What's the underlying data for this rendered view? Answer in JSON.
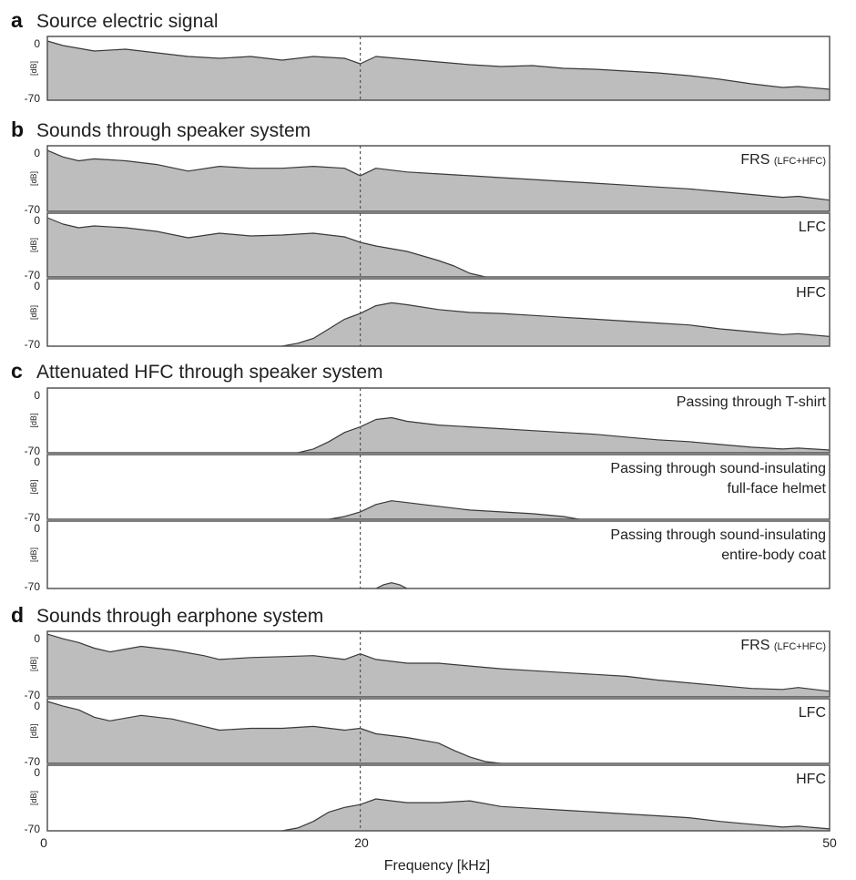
{
  "colors": {
    "fill": "#bdbdbd",
    "line": "#3a3a3a",
    "frame": "#555555"
  },
  "chart_data": {
    "type": "area",
    "xlabel": "Frequency [kHz]",
    "xlim": [
      0,
      50
    ],
    "x_ticks": [
      "0",
      "20",
      "50"
    ],
    "reference_line_x": 20,
    "ylabel": "[dB]",
    "ylim": [
      -70,
      0
    ],
    "y_ticks": [
      "0",
      "-70"
    ],
    "sections": [
      {
        "letter": "a",
        "title": "Source electric signal",
        "panels": [
          {
            "label": "",
            "label_sub": "",
            "points": [
              [
                0,
                -5
              ],
              [
                1,
                -10
              ],
              [
                2,
                -13
              ],
              [
                3,
                -16
              ],
              [
                5,
                -14
              ],
              [
                7,
                -18
              ],
              [
                9,
                -22
              ],
              [
                11,
                -24
              ],
              [
                13,
                -22
              ],
              [
                15,
                -26
              ],
              [
                17,
                -22
              ],
              [
                19,
                -24
              ],
              [
                20,
                -30
              ],
              [
                21,
                -22
              ],
              [
                23,
                -25
              ],
              [
                25,
                -28
              ],
              [
                27,
                -31
              ],
              [
                29,
                -33
              ],
              [
                31,
                -32
              ],
              [
                33,
                -35
              ],
              [
                35,
                -36
              ],
              [
                37,
                -38
              ],
              [
                39,
                -40
              ],
              [
                41,
                -43
              ],
              [
                43,
                -47
              ],
              [
                45,
                -52
              ],
              [
                47,
                -56
              ],
              [
                48,
                -55
              ],
              [
                50,
                -58
              ]
            ]
          }
        ]
      },
      {
        "letter": "b",
        "title": "Sounds through speaker system",
        "panels": [
          {
            "label": "FRS",
            "label_sub": "(LFC+HFC)",
            "points": [
              [
                0,
                -5
              ],
              [
                1,
                -12
              ],
              [
                2,
                -16
              ],
              [
                3,
                -14
              ],
              [
                5,
                -16
              ],
              [
                7,
                -20
              ],
              [
                9,
                -27
              ],
              [
                11,
                -22
              ],
              [
                13,
                -24
              ],
              [
                15,
                -24
              ],
              [
                17,
                -22
              ],
              [
                19,
                -24
              ],
              [
                20,
                -32
              ],
              [
                21,
                -24
              ],
              [
                23,
                -28
              ],
              [
                25,
                -30
              ],
              [
                27,
                -32
              ],
              [
                29,
                -34
              ],
              [
                31,
                -36
              ],
              [
                33,
                -38
              ],
              [
                35,
                -40
              ],
              [
                37,
                -42
              ],
              [
                39,
                -44
              ],
              [
                41,
                -46
              ],
              [
                43,
                -49
              ],
              [
                45,
                -52
              ],
              [
                47,
                -55
              ],
              [
                48,
                -54
              ],
              [
                50,
                -58
              ]
            ]
          },
          {
            "label": "LFC",
            "label_sub": "",
            "points": [
              [
                0,
                -5
              ],
              [
                1,
                -12
              ],
              [
                2,
                -16
              ],
              [
                3,
                -14
              ],
              [
                5,
                -16
              ],
              [
                7,
                -20
              ],
              [
                9,
                -27
              ],
              [
                11,
                -22
              ],
              [
                13,
                -25
              ],
              [
                15,
                -24
              ],
              [
                17,
                -22
              ],
              [
                19,
                -26
              ],
              [
                20,
                -32
              ],
              [
                21,
                -36
              ],
              [
                23,
                -42
              ],
              [
                25,
                -52
              ],
              [
                26,
                -58
              ],
              [
                27,
                -66
              ],
              [
                28,
                -70
              ]
            ]
          },
          {
            "label": "HFC",
            "label_sub": "",
            "points": [
              [
                15,
                -70
              ],
              [
                16,
                -67
              ],
              [
                17,
                -62
              ],
              [
                18,
                -52
              ],
              [
                19,
                -42
              ],
              [
                20,
                -36
              ],
              [
                21,
                -28
              ],
              [
                22,
                -25
              ],
              [
                23,
                -27
              ],
              [
                25,
                -32
              ],
              [
                27,
                -35
              ],
              [
                29,
                -36
              ],
              [
                31,
                -38
              ],
              [
                33,
                -40
              ],
              [
                35,
                -42
              ],
              [
                37,
                -44
              ],
              [
                39,
                -46
              ],
              [
                41,
                -48
              ],
              [
                43,
                -52
              ],
              [
                45,
                -55
              ],
              [
                47,
                -58
              ],
              [
                48,
                -57
              ],
              [
                50,
                -60
              ]
            ]
          }
        ]
      },
      {
        "letter": "c",
        "title": "Attenuated HFC through speaker system",
        "panels": [
          {
            "label": "Passing through T-shirt",
            "label_sub": "",
            "points": [
              [
                16,
                -70
              ],
              [
                17,
                -66
              ],
              [
                18,
                -58
              ],
              [
                19,
                -48
              ],
              [
                20,
                -42
              ],
              [
                21,
                -34
              ],
              [
                22,
                -32
              ],
              [
                23,
                -36
              ],
              [
                25,
                -40
              ],
              [
                27,
                -42
              ],
              [
                29,
                -44
              ],
              [
                31,
                -46
              ],
              [
                33,
                -48
              ],
              [
                35,
                -50
              ],
              [
                37,
                -53
              ],
              [
                39,
                -56
              ],
              [
                41,
                -58
              ],
              [
                43,
                -61
              ],
              [
                45,
                -64
              ],
              [
                47,
                -66
              ],
              [
                48,
                -65
              ],
              [
                50,
                -67
              ]
            ]
          },
          {
            "label": "Passing through sound-insulating",
            "label_2": "full-face helmet",
            "label_sub": "",
            "points": [
              [
                18,
                -70
              ],
              [
                19,
                -67
              ],
              [
                20,
                -62
              ],
              [
                21,
                -54
              ],
              [
                22,
                -50
              ],
              [
                23,
                -52
              ],
              [
                24,
                -54
              ],
              [
                25,
                -56
              ],
              [
                27,
                -60
              ],
              [
                29,
                -62
              ],
              [
                31,
                -64
              ],
              [
                33,
                -67
              ],
              [
                34,
                -70
              ]
            ]
          },
          {
            "label": "Passing through sound-insulating",
            "label_2": "entire-body coat",
            "label_sub": "",
            "points": [
              [
                21,
                -70
              ],
              [
                21.5,
                -66
              ],
              [
                22,
                -64
              ],
              [
                22.5,
                -66
              ],
              [
                23,
                -70
              ]
            ]
          }
        ]
      },
      {
        "letter": "d",
        "title": "Sounds through earphone system",
        "panels": [
          {
            "label": "FRS",
            "label_sub": "(LFC+HFC)",
            "points": [
              [
                0,
                -3
              ],
              [
                1,
                -8
              ],
              [
                2,
                -12
              ],
              [
                3,
                -18
              ],
              [
                4,
                -22
              ],
              [
                6,
                -16
              ],
              [
                8,
                -20
              ],
              [
                10,
                -26
              ],
              [
                11,
                -30
              ],
              [
                13,
                -28
              ],
              [
                15,
                -27
              ],
              [
                17,
                -26
              ],
              [
                19,
                -30
              ],
              [
                20,
                -24
              ],
              [
                21,
                -30
              ],
              [
                23,
                -34
              ],
              [
                25,
                -34
              ],
              [
                27,
                -37
              ],
              [
                29,
                -40
              ],
              [
                31,
                -42
              ],
              [
                33,
                -44
              ],
              [
                35,
                -46
              ],
              [
                37,
                -48
              ],
              [
                39,
                -52
              ],
              [
                41,
                -55
              ],
              [
                43,
                -58
              ],
              [
                45,
                -61
              ],
              [
                47,
                -62
              ],
              [
                48,
                -60
              ],
              [
                50,
                -64
              ]
            ]
          },
          {
            "label": "LFC",
            "label_sub": "",
            "points": [
              [
                0,
                -3
              ],
              [
                1,
                -8
              ],
              [
                2,
                -12
              ],
              [
                3,
                -20
              ],
              [
                4,
                -24
              ],
              [
                6,
                -18
              ],
              [
                8,
                -22
              ],
              [
                10,
                -30
              ],
              [
                11,
                -34
              ],
              [
                13,
                -32
              ],
              [
                15,
                -32
              ],
              [
                17,
                -30
              ],
              [
                19,
                -34
              ],
              [
                20,
                -32
              ],
              [
                21,
                -38
              ],
              [
                23,
                -42
              ],
              [
                25,
                -48
              ],
              [
                26,
                -56
              ],
              [
                27,
                -63
              ],
              [
                28,
                -68
              ],
              [
                29,
                -70
              ]
            ]
          },
          {
            "label": "HFC",
            "label_sub": "",
            "points": [
              [
                15,
                -70
              ],
              [
                16,
                -67
              ],
              [
                17,
                -60
              ],
              [
                18,
                -50
              ],
              [
                19,
                -45
              ],
              [
                20,
                -42
              ],
              [
                21,
                -36
              ],
              [
                22,
                -38
              ],
              [
                23,
                -40
              ],
              [
                25,
                -40
              ],
              [
                27,
                -38
              ],
              [
                29,
                -44
              ],
              [
                31,
                -46
              ],
              [
                33,
                -48
              ],
              [
                35,
                -50
              ],
              [
                37,
                -52
              ],
              [
                39,
                -54
              ],
              [
                41,
                -56
              ],
              [
                43,
                -60
              ],
              [
                45,
                -63
              ],
              [
                47,
                -66
              ],
              [
                48,
                -65
              ],
              [
                50,
                -68
              ]
            ]
          }
        ]
      }
    ]
  }
}
